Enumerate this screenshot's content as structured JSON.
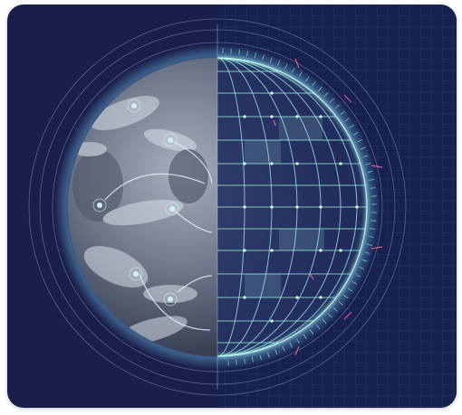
{
  "image": {
    "subject": "earth-globe-with-grid-overlay",
    "colors": {
      "background": "#1a1f4a",
      "grid_background": "#17214f",
      "earth_dark": "#2a3246",
      "earth_light": "#9aa3b4",
      "grid_line": "#9ff3e6",
      "accent_red": "#ff6b8a",
      "orbit_ring": "#aab2d6"
    }
  }
}
